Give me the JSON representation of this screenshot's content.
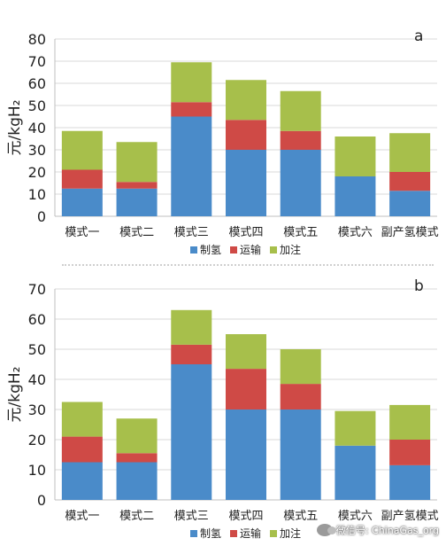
{
  "watermark": "微信号: ChinaGas_org",
  "chart_data": [
    {
      "type": "bar",
      "stacked": true,
      "panel_label": "a",
      "ylabel": "元/kgH₂",
      "ylim": [
        0,
        80
      ],
      "yticks": [
        0,
        10,
        20,
        30,
        40,
        50,
        60,
        70,
        80
      ],
      "grid": true,
      "legend_position": "bottom",
      "categories": [
        "模式一",
        "模式二",
        "模式三",
        "模式四",
        "模式五",
        "模式六",
        "副产氢模式"
      ],
      "series": [
        {
          "name": "制氢",
          "color": "#4a8bc9",
          "values": [
            12.5,
            12.5,
            45,
            30,
            30,
            18,
            11.5
          ]
        },
        {
          "name": "运输",
          "color": "#cf4a46",
          "values": [
            8.5,
            3,
            6.5,
            13.5,
            8.5,
            0,
            8.5
          ]
        },
        {
          "name": "加注",
          "color": "#a7bf4b",
          "values": [
            17.5,
            18,
            18,
            18,
            18,
            18,
            17.5
          ]
        }
      ]
    },
    {
      "type": "bar",
      "stacked": true,
      "panel_label": "b",
      "ylabel": "元/kgH₂",
      "ylim": [
        0,
        70
      ],
      "yticks": [
        0,
        10,
        20,
        30,
        40,
        50,
        60,
        70
      ],
      "grid": true,
      "legend_position": "bottom",
      "categories": [
        "模式一",
        "模式二",
        "模式三",
        "模式四",
        "模式五",
        "模式六",
        "副产氢模式"
      ],
      "series": [
        {
          "name": "制氢",
          "color": "#4a8bc9",
          "values": [
            12.5,
            12.5,
            45,
            30,
            30,
            18,
            11.5
          ]
        },
        {
          "name": "运输",
          "color": "#cf4a46",
          "values": [
            8.5,
            3,
            6.5,
            13.5,
            8.5,
            0,
            8.5
          ]
        },
        {
          "name": "加注",
          "color": "#a7bf4b",
          "values": [
            11.5,
            11.5,
            11.5,
            11.5,
            11.5,
            11.5,
            11.5
          ]
        }
      ]
    }
  ]
}
